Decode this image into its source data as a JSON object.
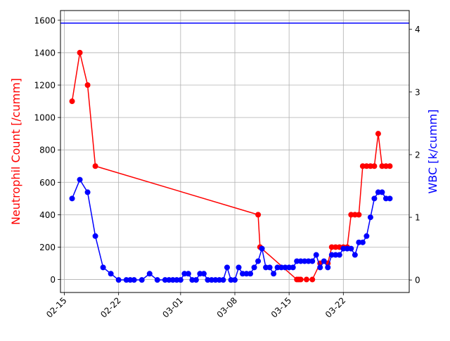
{
  "chart_data": {
    "type": "line",
    "title": "",
    "xlabel": "",
    "ylabel": "Neutrophil Count [/cumm]",
    "y2label": "WBC [k/cumm]",
    "x_tick_labels": [
      "02-15",
      "02-22",
      "03-01",
      "03-08",
      "03-15",
      "03-22"
    ],
    "x_tick_dates": [
      "2000-02-15",
      "2000-02-22",
      "2000-03-01",
      "2000-03-08",
      "2000-03-15",
      "2000-03-22"
    ],
    "xlim": [
      "2000-02-14 12:00",
      "2000-03-30 12:00"
    ],
    "ylim": [
      -80,
      1660
    ],
    "y2lim": [
      -0.2,
      4.3
    ],
    "y_ticks": [
      0,
      200,
      400,
      600,
      800,
      1000,
      1200,
      1400,
      1600
    ],
    "y2_ticks": [
      0,
      1,
      2,
      3,
      4
    ],
    "grid": true,
    "legend": "none",
    "horizontal_line": {
      "axis": "right",
      "value": 4.1,
      "color": "#0000ff"
    },
    "series": [
      {
        "axis": "left",
        "color": "#ff0000",
        "marker": "circle",
        "x": [
          "2000-02-16 00:00",
          "2000-02-17 00:00",
          "2000-02-18 00:00",
          "2000-02-19 00:00",
          "2000-03-11 00:00",
          "2000-03-11 06:00",
          "2000-03-16 00:00",
          "2000-03-16 06:00",
          "2000-03-16 12:00",
          "2000-03-17 06:00",
          "2000-03-18 00:00",
          "2000-03-19 00:00",
          "2000-03-20 00:00",
          "2000-03-20 12:00",
          "2000-03-21 00:00",
          "2000-03-21 12:00",
          "2000-03-22 00:00",
          "2000-03-22 12:00",
          "2000-03-23 00:00",
          "2000-03-23 12:00",
          "2000-03-24 00:00",
          "2000-03-24 12:00",
          "2000-03-25 00:00",
          "2000-03-25 12:00",
          "2000-03-26 00:00",
          "2000-03-26 12:00",
          "2000-03-27 00:00",
          "2000-03-27 12:00",
          "2000-03-28 00:00"
        ],
        "y": [
          1100,
          1400,
          1200,
          700,
          400,
          200,
          0,
          0,
          0,
          0,
          0,
          100,
          100,
          200,
          200,
          200,
          200,
          200,
          400,
          400,
          400,
          700,
          700,
          700,
          700,
          900,
          700,
          700,
          700
        ]
      },
      {
        "axis": "right",
        "color": "#0000ff",
        "marker": "circle",
        "x": [
          "2000-02-16 00:00",
          "2000-02-17 00:00",
          "2000-02-18 00:00",
          "2000-02-19 00:00",
          "2000-02-20 00:00",
          "2000-02-21 00:00",
          "2000-02-22 00:00",
          "2000-02-23 00:00",
          "2000-02-23 12:00",
          "2000-02-24 00:00",
          "2000-02-25 00:00",
          "2000-02-26 00:00",
          "2000-02-27 00:00",
          "2000-02-28 00:00",
          "2000-02-28 12:00",
          "2000-02-29 00:00",
          "2000-02-29 12:00",
          "2000-03-01 00:00",
          "2000-03-01 12:00",
          "2000-03-02 00:00",
          "2000-03-02 12:00",
          "2000-03-03 00:00",
          "2000-03-03 12:00",
          "2000-03-04 00:00",
          "2000-03-04 12:00",
          "2000-03-05 00:00",
          "2000-03-05 12:00",
          "2000-03-06 00:00",
          "2000-03-06 12:00",
          "2000-03-07 00:00",
          "2000-03-07 12:00",
          "2000-03-08 00:00",
          "2000-03-08 12:00",
          "2000-03-09 00:00",
          "2000-03-09 12:00",
          "2000-03-10 00:00",
          "2000-03-10 12:00",
          "2000-03-11 00:00",
          "2000-03-11 12:00",
          "2000-03-12 00:00",
          "2000-03-12 12:00",
          "2000-03-13 00:00",
          "2000-03-13 12:00",
          "2000-03-14 00:00",
          "2000-03-14 12:00",
          "2000-03-15 00:00",
          "2000-03-15 12:00",
          "2000-03-16 00:00",
          "2000-03-16 12:00",
          "2000-03-17 00:00",
          "2000-03-17 12:00",
          "2000-03-18 00:00",
          "2000-03-18 12:00",
          "2000-03-19 00:00",
          "2000-03-19 12:00",
          "2000-03-20 00:00",
          "2000-03-20 12:00",
          "2000-03-21 00:00",
          "2000-03-21 12:00",
          "2000-03-22 00:00",
          "2000-03-22 12:00",
          "2000-03-23 00:00",
          "2000-03-23 12:00",
          "2000-03-24 00:00",
          "2000-03-24 12:00",
          "2000-03-25 00:00",
          "2000-03-25 12:00",
          "2000-03-26 00:00",
          "2000-03-26 12:00",
          "2000-03-27 00:00",
          "2000-03-27 12:00",
          "2000-03-28 00:00"
        ],
        "y": [
          1.3,
          1.6,
          1.4,
          0.7,
          0.2,
          0.1,
          0,
          0,
          0,
          0,
          0,
          0.1,
          0,
          0,
          0,
          0,
          0,
          0,
          0.1,
          0.1,
          0,
          0,
          0.1,
          0.1,
          0,
          0,
          0,
          0,
          0,
          0.2,
          0,
          0,
          0.2,
          0.1,
          0.1,
          0.1,
          0.2,
          0.3,
          0.5,
          0.2,
          0.2,
          0.1,
          0.2,
          0.2,
          0.2,
          0.2,
          0.2,
          0.3,
          0.3,
          0.3,
          0.3,
          0.3,
          0.4,
          0.2,
          0.3,
          0.2,
          0.4,
          0.4,
          0.4,
          0.5,
          0.5,
          0.5,
          0.4,
          0.6,
          0.6,
          0.7,
          1.0,
          1.3,
          1.4,
          1.4,
          1.3,
          1.3
        ]
      }
    ]
  }
}
